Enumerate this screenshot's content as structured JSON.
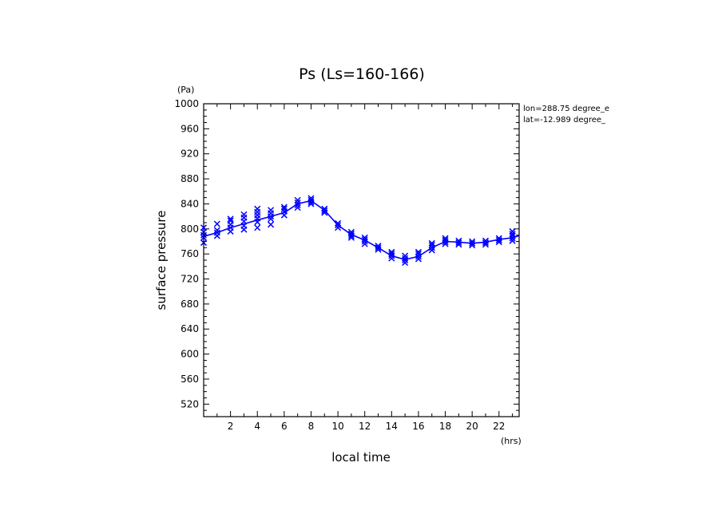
{
  "chart_data": {
    "type": "line",
    "title": "Ps (Ls=160-166)",
    "xlabel": "local time",
    "ylabel": "surface pressure",
    "x_unit": "(hrs)",
    "y_unit": "(Pa)",
    "xlim": [
      0,
      23.5
    ],
    "ylim": [
      500,
      1000
    ],
    "x_ticks": [
      2,
      4,
      6,
      8,
      10,
      12,
      14,
      16,
      18,
      20,
      22
    ],
    "y_ticks": [
      520,
      560,
      600,
      640,
      680,
      720,
      760,
      800,
      840,
      880,
      920,
      960,
      1000
    ],
    "annotations": [
      "lon=288.75 degree_e",
      "lat=-12.989 degree_"
    ],
    "grid": false,
    "color": "#0000ff",
    "series": [
      {
        "style": "line",
        "x": [
          0,
          1,
          2,
          3,
          4,
          5,
          6,
          7,
          8,
          9,
          10,
          11,
          12,
          13,
          14,
          15,
          16,
          17,
          18,
          19,
          20,
          21,
          22,
          23,
          23.5
        ],
        "y": [
          788,
          794,
          802,
          808,
          814,
          820,
          826,
          840,
          845,
          830,
          806,
          791,
          782,
          770,
          757,
          751,
          756,
          770,
          780,
          779,
          777,
          779,
          783,
          786,
          789
        ]
      },
      {
        "style": "markers",
        "marker": "x",
        "points": [
          [
            0,
            778
          ],
          [
            0,
            786
          ],
          [
            0,
            790
          ],
          [
            0,
            795
          ],
          [
            0,
            802
          ],
          [
            1,
            789
          ],
          [
            1,
            794
          ],
          [
            1,
            798
          ],
          [
            1,
            808
          ],
          [
            2,
            796
          ],
          [
            2,
            802
          ],
          [
            2,
            807
          ],
          [
            2,
            813
          ],
          [
            2,
            816
          ],
          [
            3,
            799
          ],
          [
            3,
            805
          ],
          [
            3,
            812
          ],
          [
            3,
            818
          ],
          [
            3,
            823
          ],
          [
            4,
            802
          ],
          [
            4,
            811
          ],
          [
            4,
            817
          ],
          [
            4,
            822
          ],
          [
            4,
            827
          ],
          [
            4,
            832
          ],
          [
            5,
            807
          ],
          [
            5,
            816
          ],
          [
            5,
            820
          ],
          [
            5,
            825
          ],
          [
            5,
            830
          ],
          [
            6,
            822
          ],
          [
            6,
            828
          ],
          [
            6,
            832
          ],
          [
            6,
            835
          ],
          [
            7,
            834
          ],
          [
            7,
            838
          ],
          [
            7,
            842
          ],
          [
            7,
            846
          ],
          [
            8,
            840
          ],
          [
            8,
            843
          ],
          [
            8,
            846
          ],
          [
            8,
            849
          ],
          [
            9,
            826
          ],
          [
            9,
            829
          ],
          [
            9,
            832
          ],
          [
            10,
            802
          ],
          [
            10,
            806
          ],
          [
            10,
            809
          ],
          [
            11,
            786
          ],
          [
            11,
            789
          ],
          [
            11,
            792
          ],
          [
            11,
            795
          ],
          [
            12,
            776
          ],
          [
            12,
            780
          ],
          [
            12,
            783
          ],
          [
            12,
            786
          ],
          [
            13,
            767
          ],
          [
            13,
            770
          ],
          [
            13,
            773
          ],
          [
            14,
            753
          ],
          [
            14,
            757
          ],
          [
            14,
            760
          ],
          [
            14,
            763
          ],
          [
            15,
            746
          ],
          [
            15,
            750
          ],
          [
            15,
            753
          ],
          [
            15,
            757
          ],
          [
            16,
            752
          ],
          [
            16,
            756
          ],
          [
            16,
            760
          ],
          [
            16,
            763
          ],
          [
            17,
            766
          ],
          [
            17,
            770
          ],
          [
            17,
            774
          ],
          [
            17,
            777
          ],
          [
            18,
            776
          ],
          [
            18,
            779
          ],
          [
            18,
            782
          ],
          [
            18,
            785
          ],
          [
            19,
            775
          ],
          [
            19,
            778
          ],
          [
            19,
            781
          ],
          [
            20,
            774
          ],
          [
            20,
            777
          ],
          [
            20,
            780
          ],
          [
            21,
            775
          ],
          [
            21,
            778
          ],
          [
            21,
            781
          ],
          [
            22,
            779
          ],
          [
            22,
            782
          ],
          [
            22,
            785
          ],
          [
            23,
            781
          ],
          [
            23,
            785
          ],
          [
            23,
            789
          ],
          [
            23,
            792
          ],
          [
            23,
            796
          ]
        ]
      }
    ]
  }
}
